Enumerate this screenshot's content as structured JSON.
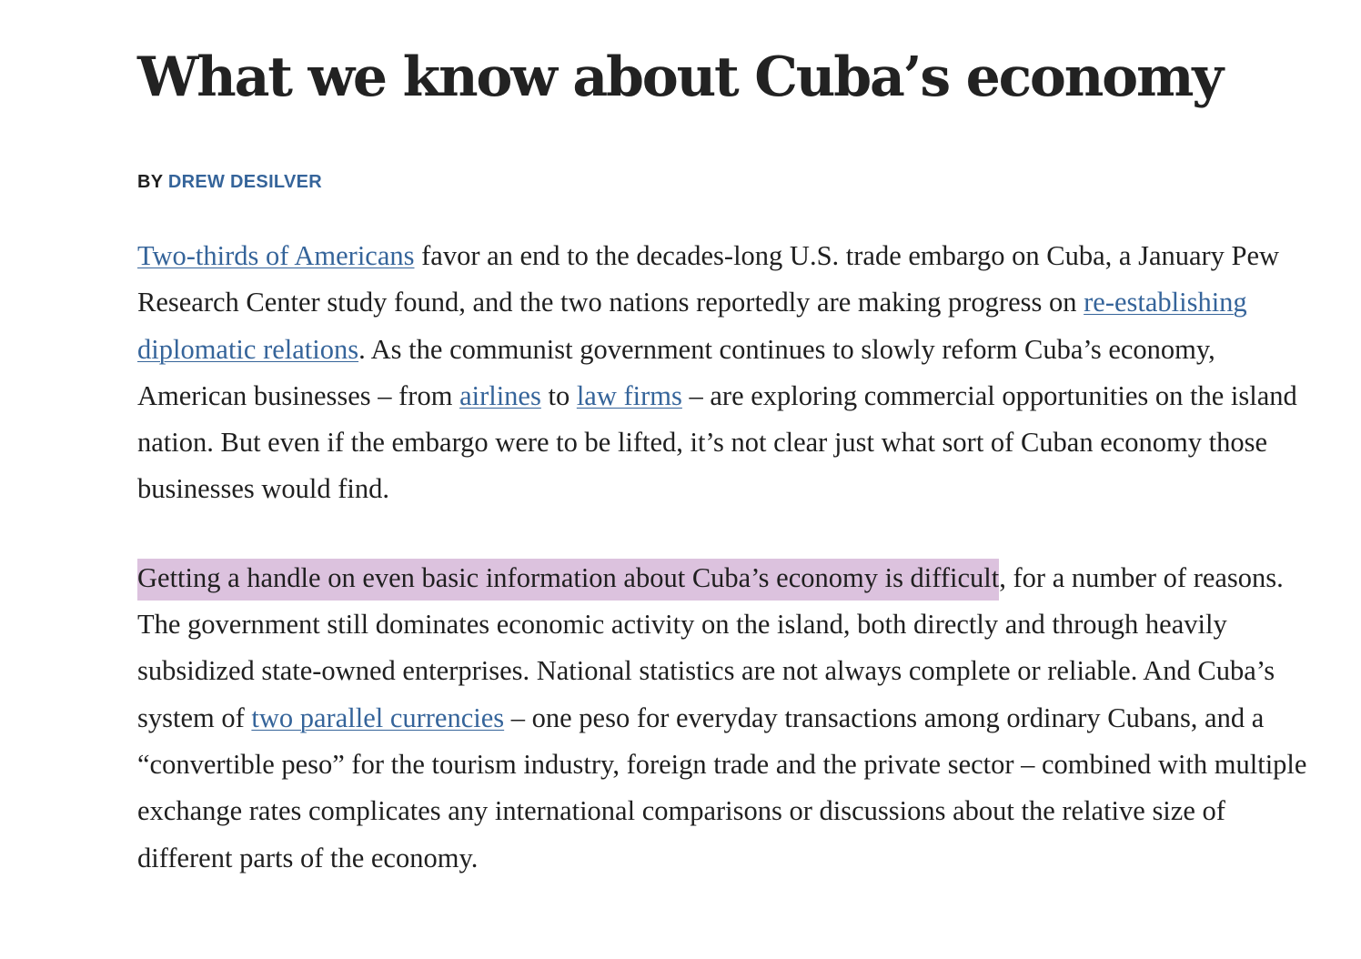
{
  "article": {
    "title": "What we know about Cuba’s economy",
    "byline": {
      "prefix": "BY",
      "author": "DREW DESILVER"
    },
    "paragraph1": {
      "link_two_thirds": "Two-thirds of Americans",
      "text_a": " favor an end to the decades-long U.S. trade embargo on Cuba, a January Pew Research Center study found, and the two nations reportedly are making progress on ",
      "link_diplomatic": "re-establishing diplomatic relations",
      "text_b": ". As the communist government continues to slowly reform Cuba’s economy, American businesses – from ",
      "link_airlines": "airlines",
      "text_c": " to ",
      "link_law_firms": "law firms",
      "text_d": " – are exploring commercial opportunities on the island nation. But even if the embargo were to be lifted, it’s not clear just what sort of Cuban economy those businesses would find."
    },
    "paragraph2": {
      "highlighted": "Getting a handle on even basic information about Cuba’s economy is difficult",
      "text_a": ", for a number of reasons. The government still dominates economic activity on the island, both directly and through heavily subsidized state-owned enterprises. National statistics are not always complete or reliable. And Cuba’s system of ",
      "link_currencies": "two parallel currencies",
      "text_b": " – one peso for everyday transactions among ordinary Cubans, and a “convertible peso” for the tourism industry, foreign trade and the private sector – combined with multiple exchange rates complicates any international comparisons or discussions about the relative size of different parts of the economy."
    }
  },
  "colors": {
    "link": "#35649a",
    "highlight": "#dcc2de",
    "text": "#1f1f1f"
  }
}
